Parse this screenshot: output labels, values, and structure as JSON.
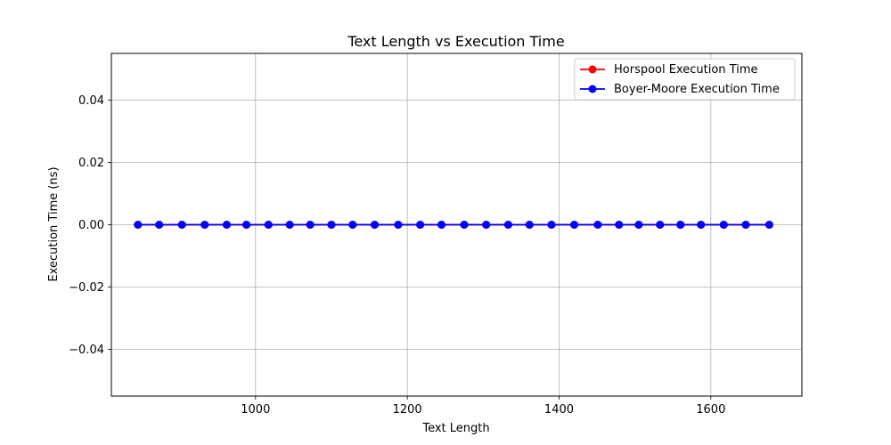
{
  "chart_data": {
    "type": "line",
    "title": "Text Length vs Execution Time",
    "xlabel": "Text Length",
    "ylabel": "Execution Time (ns)",
    "xlim": [
      810,
      1720
    ],
    "ylim": [
      -0.055,
      0.055
    ],
    "xticks": [
      1000,
      1200,
      1400,
      1600
    ],
    "yticks": [
      -0.04,
      -0.02,
      0.0,
      0.02,
      0.04
    ],
    "ytick_labels": [
      "−0.04",
      "−0.02",
      "0.00",
      "0.02",
      "0.04"
    ],
    "grid": true,
    "legend_position": "top-right",
    "x": [
      845,
      873,
      903,
      933,
      962,
      988,
      1017,
      1045,
      1072,
      1100,
      1128,
      1157,
      1188,
      1217,
      1245,
      1275,
      1304,
      1333,
      1361,
      1390,
      1420,
      1451,
      1479,
      1505,
      1533,
      1560,
      1587,
      1617,
      1646,
      1677
    ],
    "series": [
      {
        "name": "Horspool Execution Time",
        "color": "#ff0000",
        "values": [
          0,
          0,
          0,
          0,
          0,
          0,
          0,
          0,
          0,
          0,
          0,
          0,
          0,
          0,
          0,
          0,
          0,
          0,
          0,
          0,
          0,
          0,
          0,
          0,
          0,
          0,
          0,
          0,
          0,
          0
        ]
      },
      {
        "name": "Boyer-Moore Execution Time",
        "color": "#0000ff",
        "values": [
          0,
          0,
          0,
          0,
          0,
          0,
          0,
          0,
          0,
          0,
          0,
          0,
          0,
          0,
          0,
          0,
          0,
          0,
          0,
          0,
          0,
          0,
          0,
          0,
          0,
          0,
          0,
          0,
          0,
          0
        ]
      }
    ]
  }
}
